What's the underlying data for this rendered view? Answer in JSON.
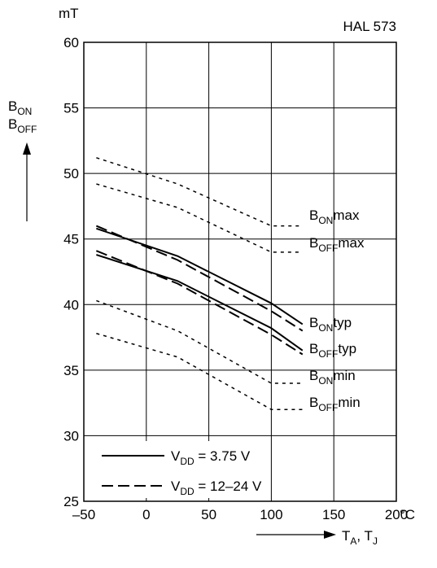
{
  "chart_data": {
    "type": "line",
    "title": "HAL 573",
    "y_unit": "mT",
    "x_unit": "°C",
    "y_label": [
      [
        "B",
        "ON"
      ],
      [
        "B",
        "OFF"
      ]
    ],
    "x_label": [
      "T",
      "A",
      ", T",
      "J"
    ],
    "xlim": [
      -50,
      200
    ],
    "ylim": [
      25,
      60
    ],
    "xticks": [
      {
        "value": -50,
        "label": "–50"
      },
      0,
      50,
      100,
      150,
      200
    ],
    "yticks": [
      25,
      30,
      35,
      40,
      45,
      50,
      55,
      60
    ],
    "grid": true,
    "color": "#000000",
    "series": [
      {
        "label": [
          "B",
          "ON",
          "max"
        ],
        "style": "dotted",
        "x": [
          -40,
          25,
          100,
          125
        ],
        "values": [
          51.2,
          49.2,
          46,
          46
        ]
      },
      {
        "label": [
          "B",
          "OFF",
          "max"
        ],
        "style": "dotted",
        "x": [
          -40,
          25,
          100,
          125
        ],
        "values": [
          49.2,
          47.4,
          44,
          44
        ]
      },
      {
        "label": [
          "B",
          "ON",
          "typ"
        ],
        "style": "solid",
        "x": [
          -40,
          25,
          100,
          125
        ],
        "values": [
          45.8,
          43.7,
          40.1,
          38.5
        ]
      },
      {
        "style": "dashed",
        "x": [
          -40,
          25,
          100,
          125
        ],
        "values": [
          46.0,
          43.4,
          39.5,
          38.0
        ]
      },
      {
        "label": [
          "B",
          "OFF",
          "typ"
        ],
        "style": "solid",
        "x": [
          -40,
          25,
          100,
          125
        ],
        "values": [
          43.8,
          41.8,
          38.2,
          36.5
        ]
      },
      {
        "style": "dashed",
        "x": [
          -40,
          25,
          100,
          125
        ],
        "values": [
          44.1,
          41.6,
          37.7,
          36.2
        ]
      },
      {
        "label": [
          "B",
          "ON",
          "min"
        ],
        "style": "dotted",
        "x": [
          -40,
          25,
          100,
          125
        ],
        "values": [
          40.3,
          38.0,
          34,
          34
        ]
      },
      {
        "label": [
          "B",
          "OFF",
          "min"
        ],
        "style": "dotted",
        "x": [
          -40,
          25,
          100,
          125
        ],
        "values": [
          37.8,
          36.0,
          32,
          32
        ]
      }
    ],
    "legend": [
      {
        "style": "solid",
        "label": [
          "V",
          "DD",
          " = 3.75 V"
        ]
      },
      {
        "style": "dashed",
        "label": [
          "V",
          "DD",
          " = 12–24 V"
        ]
      }
    ]
  }
}
